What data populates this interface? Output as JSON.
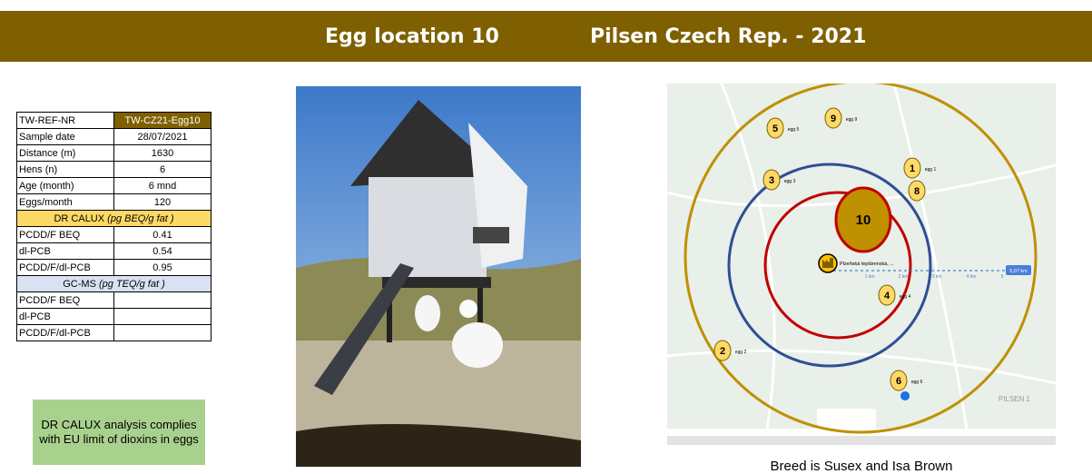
{
  "header": {
    "title": "Egg location 10",
    "subtitle": "Pilsen Czech Rep.  -  2021"
  },
  "table": {
    "rows": [
      [
        "TW-REF-NR",
        "TW-CZ21-Egg10"
      ],
      [
        "Sample date",
        "28/07/2021"
      ],
      [
        "Distance (m)",
        "1630"
      ],
      [
        "Hens (n)",
        "6"
      ],
      [
        "Age (month)",
        "6 mnd"
      ],
      [
        "Eggs/month",
        "120"
      ]
    ],
    "calux": {
      "title": "DR CALUX",
      "unit": "(pg BEQ/g fat )",
      "rows": [
        [
          "PCDD/F BEQ",
          "0.41"
        ],
        [
          "dl-PCB",
          "0.54"
        ],
        [
          "PCDD/F/dl-PCB",
          "0.95"
        ]
      ]
    },
    "gcms": {
      "title": "GC-MS",
      "unit": "(pg TEQ/g fat )",
      "rows": [
        [
          "PCDD/F BEQ"
        ],
        [
          "dl-PCB"
        ],
        [
          "PCDD/F/dl-PCB"
        ]
      ]
    }
  },
  "note": "DR CALUX analysis complies with EU limit of dioxins in eggs",
  "map": {
    "markers": [
      {
        "label": "5",
        "tag": "egg 5"
      },
      {
        "label": "9",
        "tag": "egg 9"
      },
      {
        "label": "3",
        "tag": "egg 3"
      },
      {
        "label": "1",
        "tag": "egg 1"
      },
      {
        "label": "8"
      },
      {
        "label": "10"
      },
      {
        "label": "4",
        "tag": "egg 4"
      },
      {
        "label": "2",
        "tag": "egg 2"
      },
      {
        "label": "6",
        "tag": "egg 6"
      }
    ],
    "source": "Plzeňská teplárenská, ...",
    "scale": [
      "1 km",
      "2 km",
      "3 km",
      "4 km",
      "5"
    ],
    "distance": "5,07 km",
    "district": "PILSEN 1"
  },
  "caption": "Breed is Susex and Isa Brown"
}
